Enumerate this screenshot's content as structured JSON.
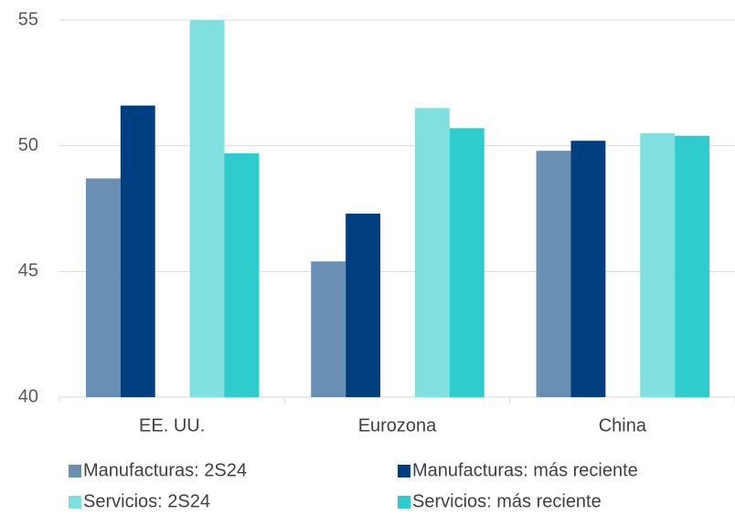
{
  "chart_data": {
    "type": "bar",
    "categories": [
      "EE. UU.",
      "Eurozona",
      "China"
    ],
    "series": [
      {
        "name": "Manufacturas: 2S24",
        "color": "#6a8fb5",
        "values": [
          48.7,
          45.4,
          49.8
        ]
      },
      {
        "name": "Manufacturas: más reciente",
        "color": "#003f7f",
        "values": [
          51.6,
          47.3,
          50.2
        ]
      },
      {
        "name": "Servicios: 2S24",
        "color": "#80e0e0",
        "values": [
          55,
          51.5,
          50.5
        ]
      },
      {
        "name": "Servicios: más reciente",
        "color": "#2ecccc",
        "values": [
          49.7,
          50.7,
          50.4
        ]
      }
    ],
    "ylim": [
      40,
      55
    ],
    "yticks": [
      40,
      45,
      50,
      55
    ],
    "grid": true,
    "legend": "bottom"
  }
}
